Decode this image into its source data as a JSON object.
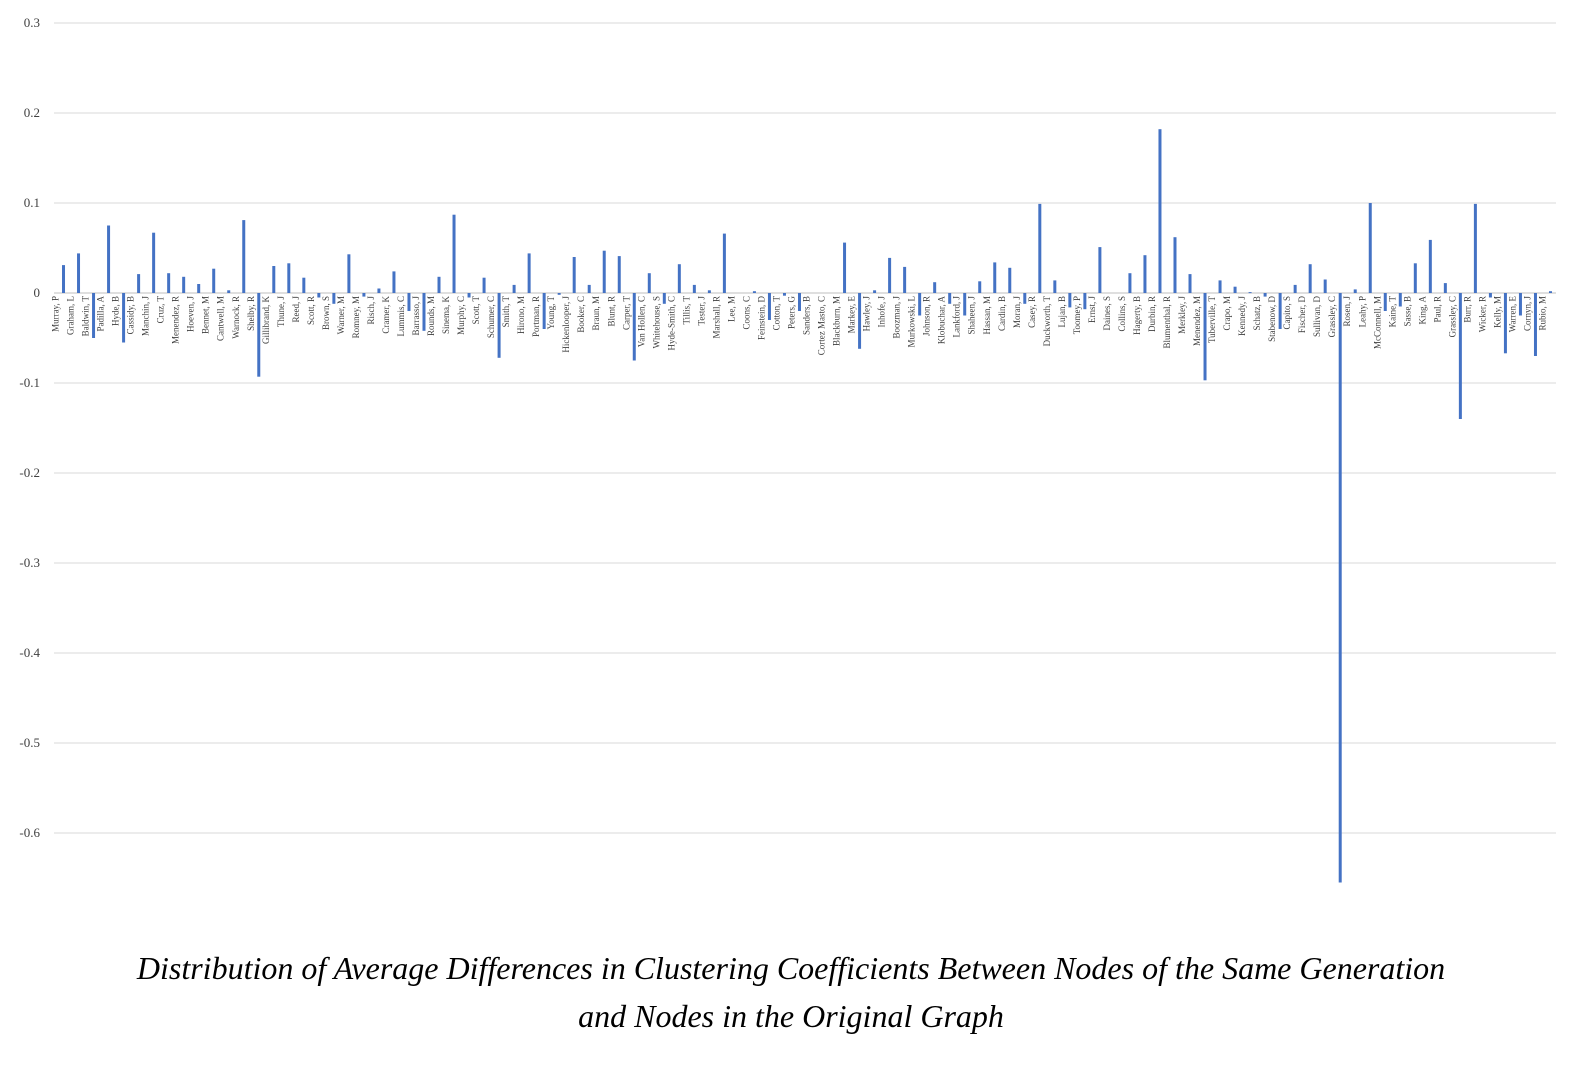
{
  "chart_data": {
    "type": "bar",
    "title": "",
    "xlabel": "",
    "ylabel": "",
    "ylim": [
      -0.7,
      0.3
    ],
    "yticks": [
      0.3,
      0.2,
      0.1,
      0,
      -0.1,
      -0.2,
      -0.3,
      -0.4,
      -0.5,
      -0.6
    ],
    "ytick_labels": [
      "0.3",
      "0.2",
      "0.1",
      "0",
      "-0.1",
      "-0.2",
      "-0.3",
      "-0.4",
      "-0.5",
      "-0.6"
    ],
    "grid": true,
    "bar_color": "#4472c4",
    "categories": [
      "Murray, P",
      "Graham, L",
      "Baldwin, T",
      "Padilla, A",
      "Hyde, B",
      "Cassidy, B",
      "Manchin, J",
      "Cruz, T",
      "Menendez, R",
      "Hoeven, J",
      "Bennet, M",
      "Cantwell, M",
      "Warnock, R",
      "Shelby, R",
      "Gillibrand, K",
      "Thune, J",
      "Reed, J",
      "Scott, R",
      "Brown, S",
      "Warner, M",
      "Romney, M",
      "Risch, J",
      "Cramer, K",
      "Lummis, C",
      "Barrasso, J",
      "Rounds, M",
      "Sinema, K",
      "Murphy, C",
      "Scott, T",
      "Schumer, C",
      "Smith, T",
      "Hirono, M",
      "Portman, R",
      "Young, T",
      "Hickenlooper, J",
      "Booker, C",
      "Braun, M",
      "Blunt, R",
      "Carper, T",
      "Van Hollen, C",
      "Whitehouse, S",
      "Hyde-Smith, C",
      "Tillis, T",
      "Tester, J",
      "Marshall, R",
      "Lee, M",
      "Coons, C",
      "Feinstein, D",
      "Cotton, T",
      "Peters, G",
      "Sanders, B",
      "Cortez Masto, C",
      "Blackburn, M",
      "Markey, E",
      "Hawley, J",
      "Inhofe, J",
      "Boozman, J",
      "Murkowski, L",
      "Johnson, R",
      "Klobuchar, A",
      "Lankford, J",
      "Shaheen, J",
      "Hassan, M",
      "Cardin, B",
      "Moran, J",
      "Casey, R",
      "Duckworth, T",
      "Lujan, B",
      "Toomey, P",
      "Ernst, J",
      "Daines, S",
      "Collins, S",
      "Hagerty, B",
      "Durbin, R",
      "Blumenthal, R",
      "Merkley, J",
      "Menendez, M",
      "Tuberville, T",
      "Crapo, M",
      "Kennedy, J",
      "Schatz, B",
      "Stabenow, D",
      "Capito, S",
      "Fischer, D",
      "Sullivan, D",
      "Grassley, C",
      "Rosen, J",
      "Leahy, P",
      "McConnell, M",
      "Kaine, T",
      "Sasse, B",
      "King, A",
      "Paul, R",
      "Grassley, C",
      "Burr, R",
      "Wicker, R",
      "Kelly, M",
      "Warren, E",
      "Cornyn, J",
      "Rubio, M"
    ],
    "values": [
      0.031,
      0.044,
      -0.05,
      0.075,
      -0.055,
      0.021,
      0.067,
      0.022,
      0.018,
      0.01,
      0.027,
      0.003,
      0.081,
      -0.093,
      0.03,
      0.033,
      0.017,
      -0.005,
      -0.012,
      0.043,
      -0.004,
      0.005,
      0.024,
      -0.02,
      -0.042,
      0.018,
      0.087,
      -0.005,
      0.017,
      -0.072,
      0.009,
      0.044,
      -0.04,
      -0.002,
      0.04,
      0.009,
      0.047,
      0.041,
      -0.075,
      0.022,
      -0.012,
      0.032,
      0.009,
      0.003,
      0.066,
      0.0,
      0.002,
      -0.03,
      -0.003,
      -0.02,
      0.0,
      0.0,
      0.056,
      -0.062,
      0.003,
      0.039,
      0.029,
      -0.025,
      0.012,
      -0.012,
      -0.025,
      0.013,
      0.034,
      0.028,
      -0.012,
      0.099,
      0.014,
      -0.016,
      -0.018,
      0.051,
      0.0,
      0.022,
      0.042,
      0.182,
      0.062,
      0.021,
      -0.097,
      0.014,
      0.007,
      0.001,
      -0.004,
      -0.04,
      0.009,
      0.032,
      0.015,
      -0.655,
      0.004,
      0.1,
      -0.02,
      -0.015,
      0.033,
      0.059,
      0.011,
      -0.14,
      0.099,
      -0.005,
      -0.067,
      -0.025,
      -0.07,
      0.002
    ]
  },
  "caption": {
    "line1": "Distribution of Average Differences in Clustering Coefficients Between Nodes of the Same Generation",
    "line2": "and Nodes in the Original Graph"
  }
}
